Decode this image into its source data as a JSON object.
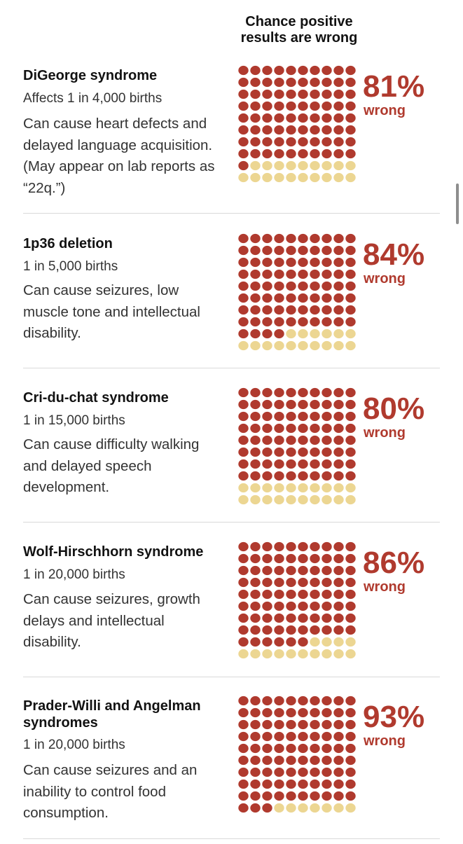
{
  "header": {
    "title_line1": "Chance positive",
    "title_line2": "results are wrong"
  },
  "colors": {
    "wrong": "#b03a2e",
    "right": "#ecd692",
    "text": "#121212"
  },
  "rows": [
    {
      "name": "DiGeorge syndrome",
      "frequency": "Affects 1 in 4,000 births",
      "description": [
        "Can cause heart defects and",
        "delayed language acquisition.",
        "(May appear on lab reports as",
        "“22q.”)"
      ],
      "percent_label": "81%",
      "wrong_label": "wrong"
    },
    {
      "name": "1p36 deletion",
      "frequency": "1 in 5,000 births",
      "description": [
        "Can cause seizures, low",
        "muscle tone and intellectual",
        "disability."
      ],
      "percent_label": "84%",
      "wrong_label": "wrong"
    },
    {
      "name": "Cri-du-chat syndrome",
      "frequency": "1 in 15,000 births",
      "description": [
        "Can cause difficulty walking",
        "and delayed speech",
        "development."
      ],
      "percent_label": "80%",
      "wrong_label": "wrong"
    },
    {
      "name": "Wolf-Hirschhorn syndrome",
      "frequency": "1 in 20,000 births",
      "description": [
        "Can cause seizures, growth",
        "delays and intellectual",
        "disability."
      ],
      "percent_label": "86%",
      "wrong_label": "wrong"
    },
    {
      "name_lines": [
        "Prader-Willi and Angelman",
        "syndromes"
      ],
      "frequency": "1 in 20,000 births",
      "description": [
        "Can cause seizures and an",
        "inability to control food",
        "consumption."
      ],
      "percent_label": "93%",
      "wrong_label": "wrong"
    }
  ],
  "chart_data": {
    "type": "waffle",
    "title": "Chance positive results are wrong",
    "grid": "10x10",
    "categories": [
      "DiGeorge syndrome",
      "1p36 deletion",
      "Cri-du-chat syndrome",
      "Wolf-Hirschhorn syndrome",
      "Prader-Willi and Angelman syndromes"
    ],
    "values": [
      81,
      84,
      80,
      86,
      93
    ]
  }
}
